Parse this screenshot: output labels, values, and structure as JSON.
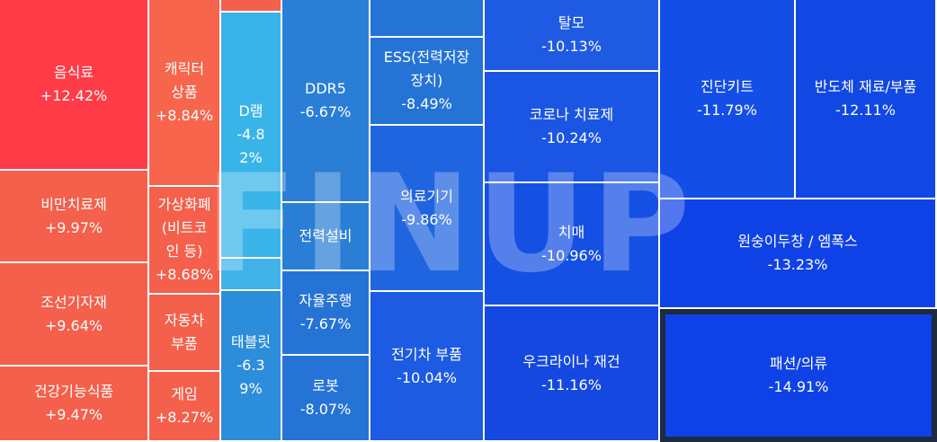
{
  "watermark": "FINUP",
  "colors": {
    "red_dark": "#ff3b47",
    "red": "#f4604b",
    "red_2": "#f6654c",
    "sky": "#38b4e8",
    "sky_light": "#41b3e9",
    "mid_blue": "#2c8ddb",
    "blue_1": "#2a7ed6",
    "blue_2": "#2673d6",
    "blue_3": "#2065e0",
    "blue_4": "#1f61e3",
    "blue_5": "#1c5be2",
    "blue_6": "#1f5ae3",
    "blue_7": "#1b55e3",
    "blue_8": "#1450e3",
    "blue_9": "#1448e0",
    "blue_10": "#134ee6",
    "blue_11": "#1147e3",
    "blue_12": "#0f42e6",
    "highlight_border": "#1c2b3f"
  },
  "chart_data": {
    "type": "treemap",
    "title": "",
    "unit": "%",
    "items": [
      {
        "name": "음식료",
        "change": "+12.42%",
        "value": 12.42
      },
      {
        "name": "비만치료제",
        "change": "+9.97%",
        "value": 9.97
      },
      {
        "name": "조선기자재",
        "change": "+9.64%",
        "value": 9.64
      },
      {
        "name": "건강기능식품",
        "change": "+9.47%",
        "value": 9.47
      },
      {
        "name": "캐릭터\n상품",
        "change": "+8.84%",
        "value": 8.84
      },
      {
        "name": "가상화폐\n(비트코\n인 등)",
        "change": "+8.68%",
        "value": 8.68
      },
      {
        "name": "자동차\n부품",
        "change": "",
        "value": null
      },
      {
        "name": "게임",
        "change": "+8.27%",
        "value": 8.27
      },
      {
        "name": "",
        "change": "",
        "value": null
      },
      {
        "name": "D램",
        "change": "-4.8\n2%",
        "value": -4.82
      },
      {
        "name": "",
        "change": "",
        "value": null
      },
      {
        "name": "태블릿",
        "change": "-6.3\n9%",
        "value": -6.39
      },
      {
        "name": "DDR5",
        "change": "-6.67%",
        "value": -6.67
      },
      {
        "name": "전력설비",
        "change": "",
        "value": null
      },
      {
        "name": "자율주행",
        "change": "-7.67%",
        "value": -7.67
      },
      {
        "name": "로봇",
        "change": "-8.07%",
        "value": -8.07
      },
      {
        "name": "",
        "change": "",
        "value": null
      },
      {
        "name": "ESS(전력저장\n장치)",
        "change": "-8.49%",
        "value": -8.49
      },
      {
        "name": "의료기기",
        "change": "-9.86%",
        "value": -9.86
      },
      {
        "name": "전기차 부품",
        "change": "-10.04%",
        "value": -10.04
      },
      {
        "name": "탈모",
        "change": "-10.13%",
        "value": -10.13
      },
      {
        "name": "코로나 치료제",
        "change": "-10.24%",
        "value": -10.24
      },
      {
        "name": "치매",
        "change": "-10.96%",
        "value": -10.96
      },
      {
        "name": "우크라이나 재건",
        "change": "-11.16%",
        "value": -11.16
      },
      {
        "name": "진단키트",
        "change": "-11.79%",
        "value": -11.79
      },
      {
        "name": "반도체 재료/부품",
        "change": "-12.11%",
        "value": -12.11
      },
      {
        "name": "원숭이두창 / 엠폭스",
        "change": "-13.23%",
        "value": -13.23
      },
      {
        "name": "패션/의류",
        "change": "-14.91%",
        "value": -14.91
      }
    ]
  }
}
